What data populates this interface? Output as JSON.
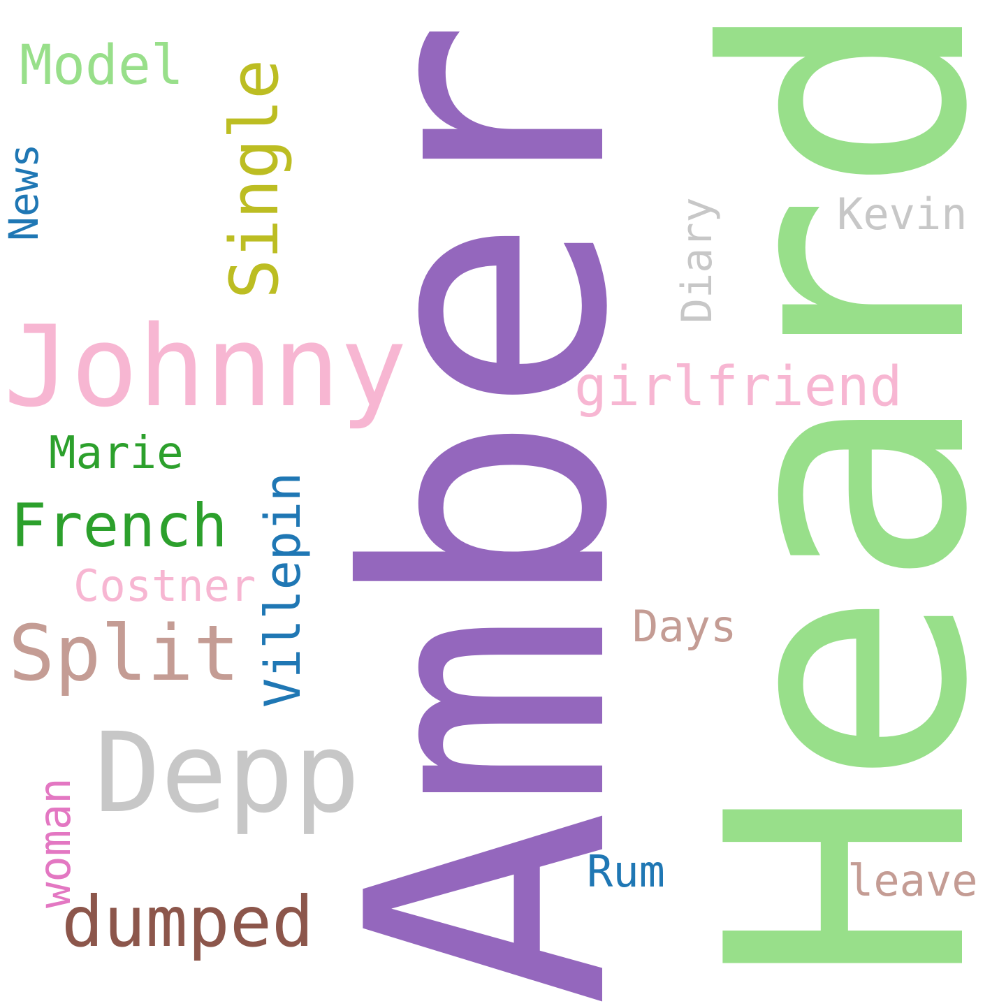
{
  "words": {
    "amber": {
      "text": "Amber",
      "color": "#9467bd",
      "orientation": "vertical"
    },
    "heard": {
      "text": "Heard",
      "color": "#98df8a",
      "orientation": "vertical"
    },
    "johnny": {
      "text": "Johnny",
      "color": "#f7b6d2",
      "orientation": "horizontal"
    },
    "depp": {
      "text": "Depp",
      "color": "#c7c7c7",
      "orientation": "horizontal"
    },
    "split": {
      "text": "Split",
      "color": "#c49c94",
      "orientation": "horizontal"
    },
    "dumped": {
      "text": "dumped",
      "color": "#8c564b",
      "orientation": "horizontal"
    },
    "single": {
      "text": "Single",
      "color": "#bcbd22",
      "orientation": "vertical"
    },
    "french": {
      "text": "French",
      "color": "#2ca02c",
      "orientation": "horizontal"
    },
    "girlfriend": {
      "text": "girlfriend",
      "color": "#f7b6d2",
      "orientation": "horizontal"
    },
    "villepin": {
      "text": "Villepin",
      "color": "#1f77b4",
      "orientation": "vertical"
    },
    "model": {
      "text": "Model",
      "color": "#98df8a",
      "orientation": "horizontal"
    },
    "marie": {
      "text": "Marie",
      "color": "#2ca02c",
      "orientation": "horizontal"
    },
    "costner": {
      "text": "Costner",
      "color": "#f7b6d2",
      "orientation": "horizontal"
    },
    "kevin": {
      "text": "Kevin",
      "color": "#c7c7c7",
      "orientation": "horizontal"
    },
    "days": {
      "text": "Days",
      "color": "#c49c94",
      "orientation": "horizontal"
    },
    "leave": {
      "text": "leave",
      "color": "#c49c94",
      "orientation": "horizontal"
    },
    "rum": {
      "text": "Rum",
      "color": "#1f77b4",
      "orientation": "horizontal"
    },
    "diary": {
      "text": "Diary",
      "color": "#c7c7c7",
      "orientation": "vertical"
    },
    "woman": {
      "text": "woman",
      "color": "#e377c2",
      "orientation": "vertical"
    },
    "news": {
      "text": "News",
      "color": "#1f77b4",
      "orientation": "vertical"
    }
  }
}
